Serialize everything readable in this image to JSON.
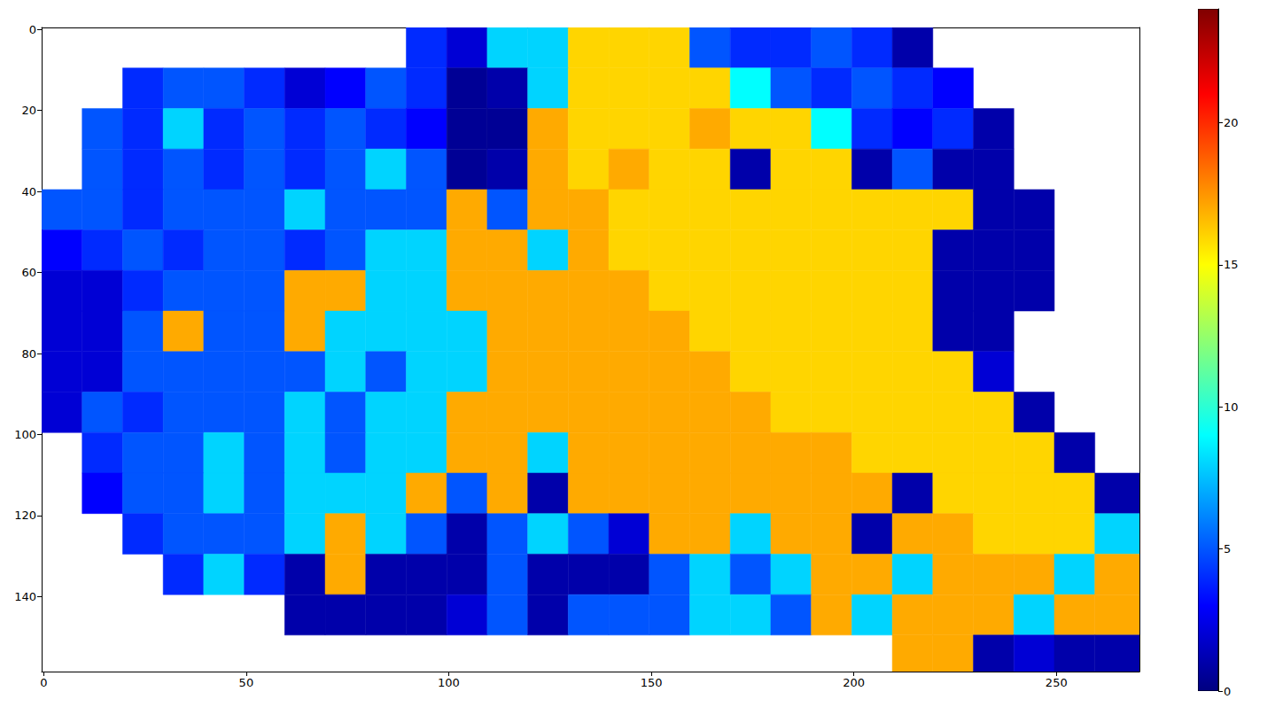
{
  "chart_data": {
    "type": "heatmap",
    "color": "jet",
    "xlim": [
      -0.5,
      270.5
    ],
    "ylim": [
      158.5,
      -0.5
    ],
    "xticks": [
      0,
      50,
      100,
      150,
      200,
      250
    ],
    "yticks": [
      0,
      20,
      40,
      60,
      80,
      100,
      120,
      140
    ],
    "x_edges": [
      -0.5,
      9.5,
      19.5,
      29.5,
      39.5,
      49.5,
      59.5,
      69.5,
      79.5,
      89.5,
      99.5,
      109.5,
      119.5,
      129.5,
      139.5,
      149.5,
      159.5,
      169.5,
      179.5,
      189.5,
      199.5,
      209.5,
      219.5,
      229.5,
      239.5,
      249.5,
      259.5,
      270.5
    ],
    "y_edges": [
      -0.5,
      9.5,
      19.5,
      29.5,
      39.5,
      49.5,
      59.5,
      69.5,
      79.5,
      89.5,
      99.5,
      109.5,
      119.5,
      129.5,
      139.5,
      149.5,
      158.5
    ],
    "cells": [
      [
        null,
        null,
        null,
        null,
        null,
        null,
        null,
        null,
        null,
        4,
        2,
        8,
        8,
        16,
        16,
        16,
        5,
        4,
        4,
        5,
        4,
        1,
        null,
        null,
        null,
        null,
        null
      ],
      [
        null,
        null,
        4,
        5,
        5,
        4,
        2,
        3,
        5,
        4,
        0.5,
        1,
        8,
        16,
        16,
        16,
        16,
        9,
        5,
        4,
        5,
        4,
        3,
        null,
        null,
        null,
        null
      ],
      [
        null,
        5,
        4,
        8,
        4,
        5,
        4,
        5,
        4,
        3,
        0.5,
        0.5,
        17,
        16,
        16,
        16,
        17,
        16,
        16,
        9,
        4,
        3,
        4,
        1,
        null,
        null,
        null
      ],
      [
        null,
        5,
        4,
        5,
        4,
        5,
        4,
        5,
        8,
        5,
        0.5,
        1,
        17,
        16,
        17,
        16,
        16,
        1,
        16,
        16,
        1,
        5,
        1,
        1,
        null,
        null,
        null
      ],
      [
        5,
        5,
        4,
        5,
        5,
        5,
        8,
        5,
        5,
        5,
        17,
        5,
        17,
        17,
        16,
        16,
        16,
        16,
        16,
        16,
        16,
        16,
        16,
        1,
        1,
        null,
        null
      ],
      [
        3,
        4,
        5,
        4,
        5,
        5,
        4,
        5,
        8,
        8,
        17,
        17,
        8,
        17,
        16,
        16,
        16,
        16,
        16,
        16,
        16,
        16,
        1,
        1,
        1,
        null,
        null
      ],
      [
        2,
        2,
        4,
        5,
        5,
        5,
        17,
        17,
        8,
        8,
        17,
        17,
        17,
        17,
        17,
        16,
        16,
        16,
        16,
        16,
        16,
        16,
        1,
        1,
        1,
        null,
        null
      ],
      [
        2,
        2,
        5,
        17,
        5,
        5,
        17,
        8,
        8,
        8,
        8,
        17,
        17,
        17,
        17,
        17,
        16,
        16,
        16,
        16,
        16,
        16,
        1,
        1,
        null,
        null,
        null
      ],
      [
        2,
        2,
        5,
        5,
        5,
        5,
        5,
        8,
        5,
        8,
        8,
        17,
        17,
        17,
        17,
        17,
        17,
        16,
        16,
        16,
        16,
        16,
        16,
        2,
        null,
        null,
        null
      ],
      [
        2,
        5,
        4,
        5,
        5,
        5,
        8,
        5,
        8,
        8,
        17,
        17,
        17,
        17,
        17,
        17,
        17,
        17,
        16,
        16,
        16,
        16,
        16,
        16,
        1,
        null,
        null
      ],
      [
        null,
        4,
        5,
        5,
        8,
        5,
        8,
        5,
        8,
        8,
        17,
        17,
        8,
        17,
        17,
        17,
        17,
        17,
        17,
        17,
        16,
        16,
        16,
        16,
        16,
        1,
        null
      ],
      [
        null,
        3,
        5,
        5,
        8,
        5,
        8,
        8,
        8,
        17,
        5,
        17,
        1,
        17,
        17,
        17,
        17,
        17,
        17,
        17,
        17,
        1,
        16,
        16,
        16,
        16,
        1
      ],
      [
        null,
        null,
        4,
        5,
        5,
        5,
        8,
        17,
        8,
        5,
        1,
        5,
        8,
        5,
        2,
        17,
        17,
        8,
        17,
        17,
        1,
        17,
        17,
        16,
        16,
        16,
        8
      ],
      [
        null,
        null,
        null,
        4,
        8,
        4,
        1,
        17,
        1,
        1,
        1,
        5,
        1,
        1,
        1,
        5,
        8,
        5,
        8,
        17,
        17,
        8,
        17,
        17,
        17,
        8,
        17
      ],
      [
        null,
        null,
        null,
        null,
        null,
        null,
        1,
        1,
        1,
        1,
        2,
        5,
        1,
        5,
        5,
        5,
        8,
        8,
        5,
        17,
        8,
        17,
        17,
        17,
        8,
        17,
        17
      ],
      [
        null,
        null,
        null,
        null,
        null,
        null,
        null,
        null,
        null,
        null,
        null,
        null,
        null,
        null,
        null,
        null,
        null,
        null,
        null,
        null,
        null,
        17,
        17,
        1,
        2,
        1,
        1
      ]
    ],
    "colorbar": {
      "lim": [
        0,
        24
      ],
      "ticks": [
        0,
        5,
        10,
        15,
        20
      ]
    }
  }
}
